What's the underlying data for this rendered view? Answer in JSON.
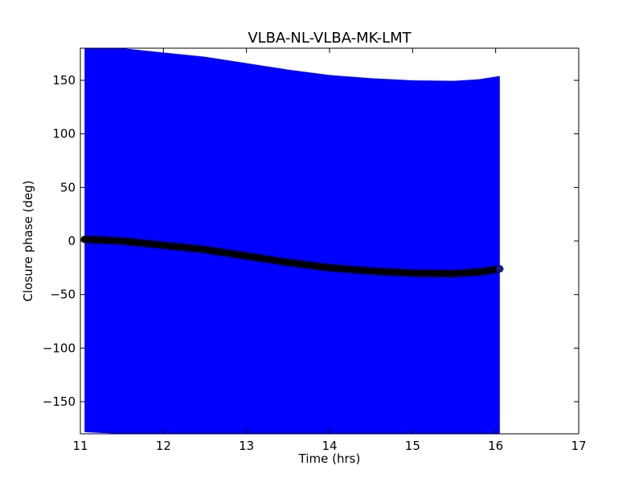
{
  "chart_data": {
    "type": "scatter",
    "title": "VLBA-NL-VLBA-MK-LMT",
    "xlabel": "Time (hrs)",
    "ylabel": "Closure phase (deg)",
    "xlim": [
      11,
      17
    ],
    "ylim": [
      -180,
      180
    ],
    "xticks": [
      11,
      12,
      13,
      14,
      15,
      16,
      17
    ],
    "yticks": [
      -150,
      -100,
      -50,
      0,
      50,
      100,
      150
    ],
    "xtick_labels": [
      "11",
      "12",
      "13",
      "14",
      "15",
      "16",
      "17"
    ],
    "ytick_labels": [
      "−150",
      "−100",
      "−50",
      "0",
      "50",
      "100",
      "150"
    ],
    "grid": false,
    "band_color": "#0000ff",
    "point_color": "#000000",
    "series": [
      {
        "x": [
          11.05,
          11.5,
          12.0,
          12.5,
          13.0,
          13.5,
          14.0,
          14.5,
          15.0,
          15.5,
          15.8,
          16.05
        ],
        "y": [
          1.5,
          0,
          -4,
          -8,
          -14,
          -20,
          -25,
          -28,
          -30,
          -30.5,
          -29,
          -26
        ],
        "error_band": [
          180,
          180,
          180,
          180,
          180,
          180,
          180,
          180,
          180,
          180,
          180,
          180
        ]
      }
    ]
  }
}
